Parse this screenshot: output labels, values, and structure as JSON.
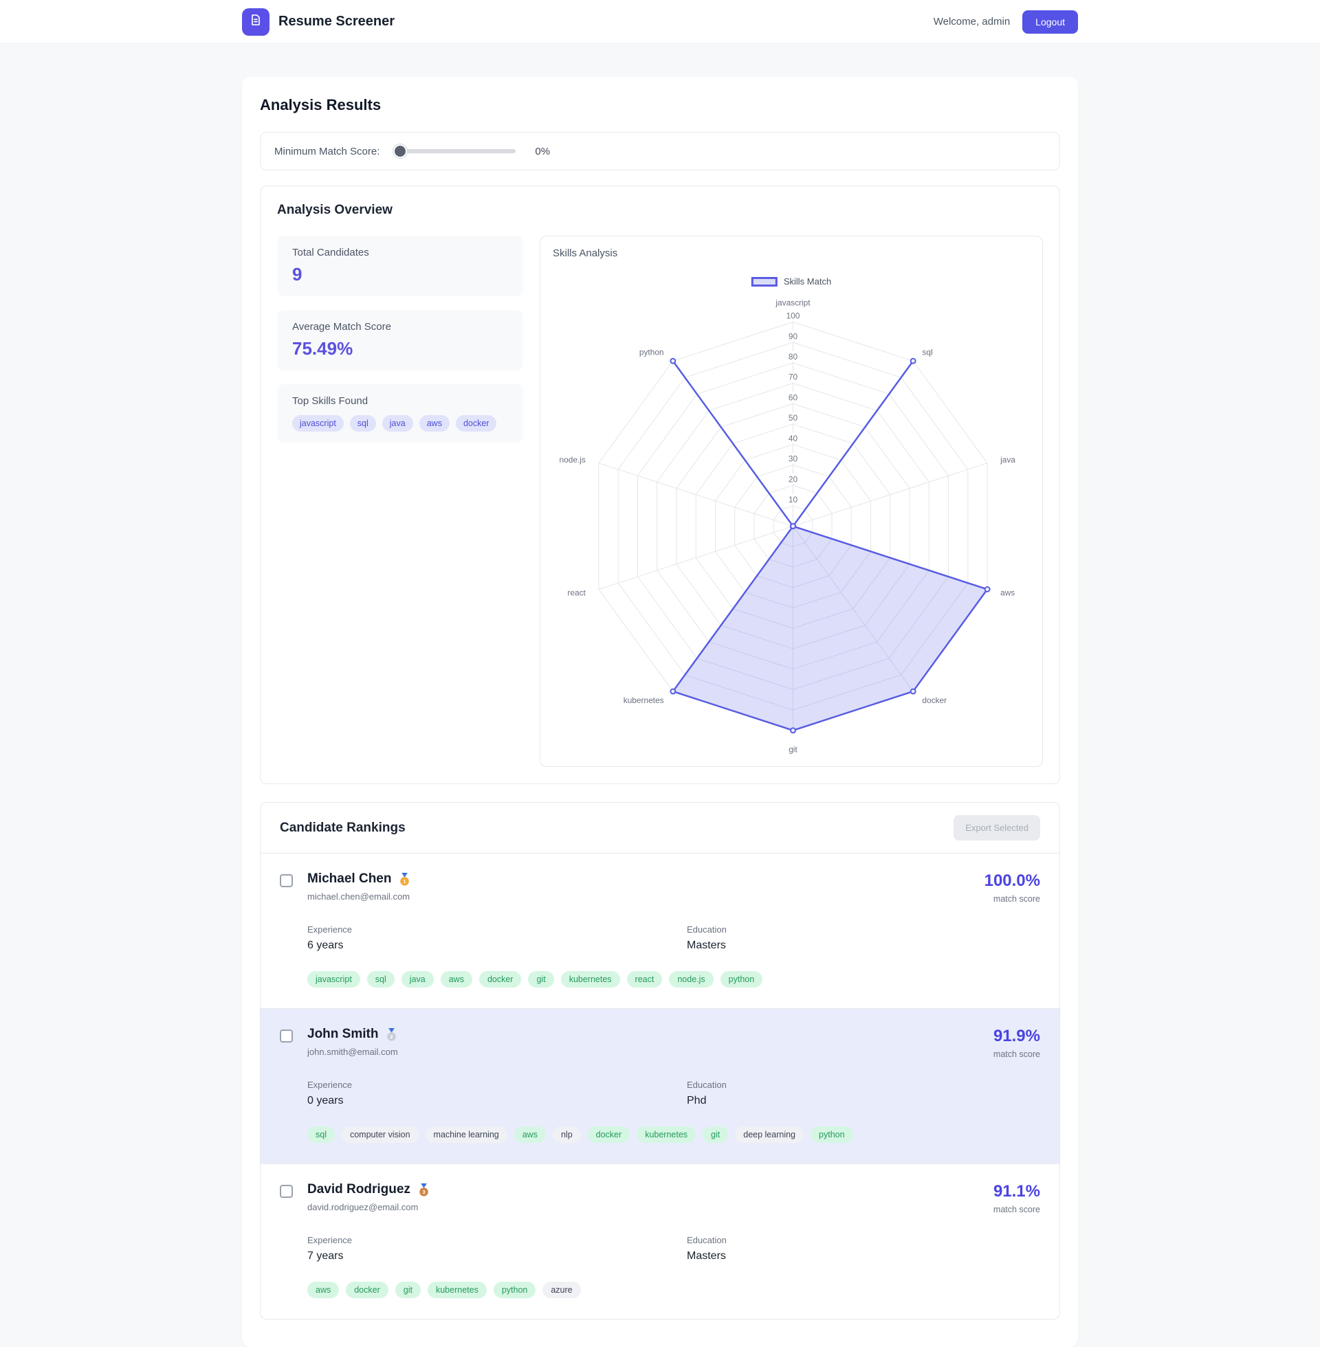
{
  "header": {
    "app_title": "Resume Screener",
    "welcome": "Welcome, admin",
    "logout_label": "Logout"
  },
  "page": {
    "title": "Analysis Results"
  },
  "filter": {
    "label": "Minimum Match Score:",
    "value": 0,
    "value_label": "0%"
  },
  "overview": {
    "title": "Analysis Overview",
    "stats": [
      {
        "label": "Total Candidates",
        "value": "9"
      },
      {
        "label": "Average Match Score",
        "value": "75.49%"
      }
    ],
    "top_skills": {
      "label": "Top Skills Found",
      "skills": [
        "javascript",
        "sql",
        "java",
        "aws",
        "docker"
      ]
    }
  },
  "chart_data": {
    "type": "radar",
    "title": "Skills Analysis",
    "categories": [
      "javascript",
      "sql",
      "java",
      "aws",
      "docker",
      "git",
      "kubernetes",
      "react",
      "node.js",
      "python"
    ],
    "series": [
      {
        "name": "Skills Match",
        "values": [
          0,
          100,
          0,
          100,
          100,
          100,
          100,
          0,
          0,
          100
        ]
      }
    ],
    "rmin": 0,
    "rmax": 100,
    "ticks": [
      10,
      20,
      30,
      40,
      50,
      60,
      70,
      80,
      90,
      100
    ],
    "grid": true,
    "legend_position": "top",
    "line_color": "#575ce2",
    "fill_color": "rgba(102,107,228,0.22)"
  },
  "rankings": {
    "title": "Candidate Rankings",
    "export_label": "Export Selected",
    "match_score_caption": "match score",
    "experience_label": "Experience",
    "education_label": "Education",
    "candidates": [
      {
        "name": "Michael Chen",
        "medal": "gold",
        "medal_rank": "1",
        "email": "michael.chen@email.com",
        "score": "100.0%",
        "experience": "6 years",
        "education": "Masters",
        "highlighted": false,
        "skills": [
          {
            "label": "javascript",
            "matched": true
          },
          {
            "label": "sql",
            "matched": true
          },
          {
            "label": "java",
            "matched": true
          },
          {
            "label": "aws",
            "matched": true
          },
          {
            "label": "docker",
            "matched": true
          },
          {
            "label": "git",
            "matched": true
          },
          {
            "label": "kubernetes",
            "matched": true
          },
          {
            "label": "react",
            "matched": true
          },
          {
            "label": "node.js",
            "matched": true
          },
          {
            "label": "python",
            "matched": true
          }
        ]
      },
      {
        "name": "John Smith",
        "medal": "silver",
        "medal_rank": "2",
        "email": "john.smith@email.com",
        "score": "91.9%",
        "experience": "0 years",
        "education": "Phd",
        "highlighted": true,
        "skills": [
          {
            "label": "sql",
            "matched": true
          },
          {
            "label": "computer vision",
            "matched": false
          },
          {
            "label": "machine learning",
            "matched": false
          },
          {
            "label": "aws",
            "matched": true
          },
          {
            "label": "nlp",
            "matched": false
          },
          {
            "label": "docker",
            "matched": true
          },
          {
            "label": "kubernetes",
            "matched": true
          },
          {
            "label": "git",
            "matched": true
          },
          {
            "label": "deep learning",
            "matched": false
          },
          {
            "label": "python",
            "matched": true
          }
        ]
      },
      {
        "name": "David Rodriguez",
        "medal": "bronze",
        "medal_rank": "3",
        "email": "david.rodriguez@email.com",
        "score": "91.1%",
        "experience": "7 years",
        "education": "Masters",
        "highlighted": false,
        "skills": [
          {
            "label": "aws",
            "matched": true
          },
          {
            "label": "docker",
            "matched": true
          },
          {
            "label": "git",
            "matched": true
          },
          {
            "label": "kubernetes",
            "matched": true
          },
          {
            "label": "python",
            "matched": true
          },
          {
            "label": "azure",
            "matched": false
          }
        ]
      }
    ]
  },
  "colors": {
    "accent": "#5552e6",
    "logo": "#5a50e8",
    "score_text": "#4b43df",
    "stat_value": "#5b51dd",
    "pill_bg": "#e1e3fb",
    "pill_text": "#4b4fd1",
    "chip_matched_bg": "#d5f6e3",
    "chip_matched_text": "#259b5b",
    "chip_other_bg": "#f0f1f4",
    "chip_other_text": "#3c4453",
    "row_highlight_bg": "#e9edfb"
  }
}
